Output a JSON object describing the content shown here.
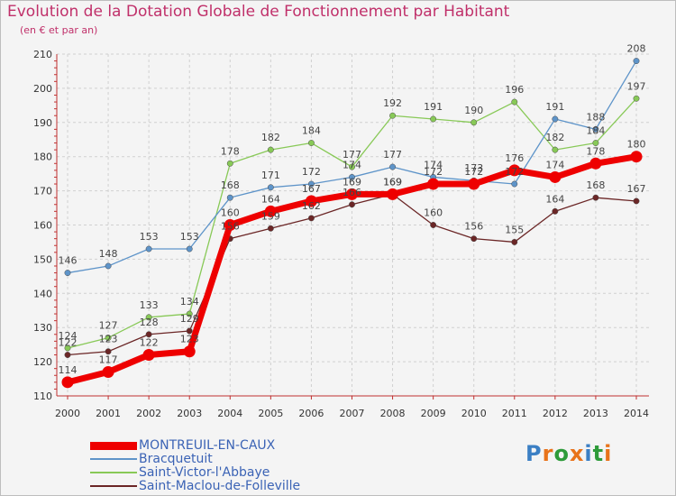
{
  "title": "Evolution de la Dotation Globale de Fonctionnement par Habitant",
  "subtitle": "(en € et par an)",
  "logo": {
    "text": "Proxiti",
    "colors": [
      "#3b7fc4",
      "#e8731a",
      "#2e9b3a",
      "#e8731a",
      "#3b7fc4",
      "#2e9b3a",
      "#e8731a"
    ]
  },
  "chart_data": {
    "type": "line",
    "title": "Evolution de la Dotation Globale de Fonctionnement par Habitant",
    "subtitle": "(en € et par an)",
    "xlabel": "",
    "ylabel": "",
    "x": [
      "2000",
      "2001",
      "2002",
      "2003",
      "2004",
      "2005",
      "2006",
      "2007",
      "2008",
      "2009",
      "2010",
      "2011",
      "2012",
      "2013",
      "2014"
    ],
    "ylim": [
      110,
      210
    ],
    "yticks": [
      110,
      120,
      130,
      140,
      150,
      160,
      170,
      180,
      190,
      200,
      210
    ],
    "grid": true,
    "legend_position": "bottom",
    "series": [
      {
        "name": "Saint-Maclou-de-Folleville",
        "color": "#6b2626",
        "values": [
          122,
          123,
          128,
          129,
          156,
          159,
          162,
          166,
          169,
          160,
          156,
          155,
          164,
          168,
          167
        ]
      },
      {
        "name": "Saint-Victor-l'Abbaye",
        "color": "#88c957",
        "values": [
          124,
          127,
          133,
          134,
          178,
          182,
          184,
          177,
          192,
          191,
          190,
          196,
          182,
          184,
          197
        ]
      },
      {
        "name": "Bracquetuit",
        "color": "#5e94c9",
        "values": [
          146,
          148,
          153,
          153,
          168,
          171,
          172,
          174,
          177,
          174,
          173,
          172,
          191,
          188,
          208
        ]
      },
      {
        "name": "MONTREUIL-EN-CAUX",
        "color": "#ee0000",
        "values": [
          114,
          117,
          122,
          123,
          160,
          164,
          167,
          169,
          169,
          172,
          172,
          176,
          174,
          178,
          180
        ]
      }
    ],
    "legend": [
      "MONTREUIL-EN-CAUX",
      "Bracquetuit",
      "Saint-Victor-l'Abbaye",
      "Saint-Maclou-de-Folleville"
    ]
  }
}
